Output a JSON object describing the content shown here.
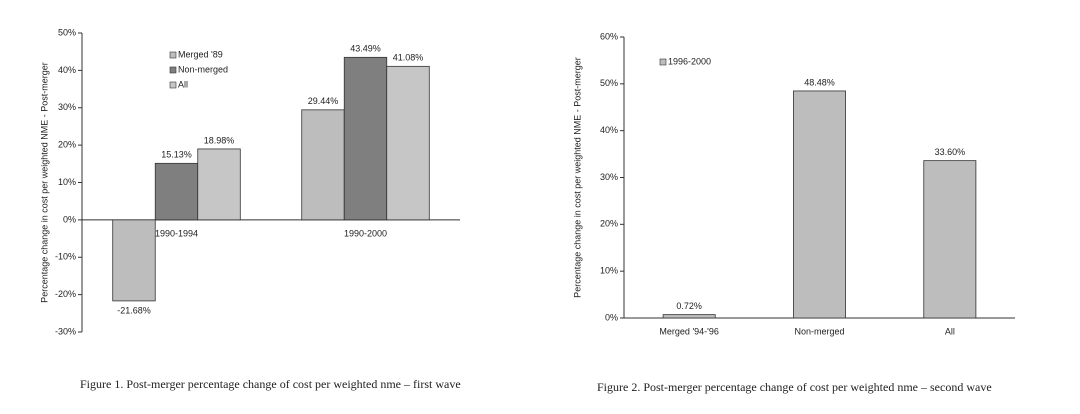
{
  "chart_data": [
    {
      "type": "bar",
      "ylabel": "Percentage change in cost per weighted NME - Post-merger",
      "caption": "Figure 1. Post-merger percentage change of cost per weighted nme – first wave",
      "categories": [
        "1990-1994",
        "1990-2000"
      ],
      "series": [
        {
          "name": "Merged '89",
          "color": "#bdbdbd",
          "values": [
            -21.68,
            29.44
          ],
          "value_labels": [
            "-21.68%",
            "29.44%"
          ]
        },
        {
          "name": "Non-merged",
          "color": "#7f7f7f",
          "values": [
            15.13,
            43.49
          ],
          "value_labels": [
            "15.13%",
            "43.49%"
          ]
        },
        {
          "name": "All",
          "color": "#c6c6c6",
          "values": [
            18.98,
            41.08
          ],
          "value_labels": [
            "18.98%",
            "41.08%"
          ]
        }
      ],
      "ylim": [
        -30,
        50
      ],
      "yticks": [
        {
          "value": -30,
          "label": "-30%"
        },
        {
          "value": -20,
          "label": "-20%"
        },
        {
          "value": -10,
          "label": "-10%"
        },
        {
          "value": 0,
          "label": "0%"
        },
        {
          "value": 10,
          "label": "10%"
        },
        {
          "value": 20,
          "label": "20%"
        },
        {
          "value": 30,
          "label": "30%"
        },
        {
          "value": 40,
          "label": "40%"
        },
        {
          "value": 50,
          "label": "50%"
        }
      ]
    },
    {
      "type": "bar",
      "ylabel": "Percentage change in cost per weighted NME - Post-merger",
      "caption": "Figure 2. Post-merger percentage change of cost per weighted nme – second wave",
      "categories": [
        "Merged '94-'96",
        "Non-merged",
        "All"
      ],
      "series": [
        {
          "name": "1996-2000",
          "color": "#bdbdbd",
          "values": [
            0.72,
            48.48,
            33.6
          ],
          "value_labels": [
            "0.72%",
            "48.48%",
            "33.60%"
          ]
        }
      ],
      "ylim": [
        0,
        60
      ],
      "yticks": [
        {
          "value": 0,
          "label": "0%"
        },
        {
          "value": 10,
          "label": "10%"
        },
        {
          "value": 20,
          "label": "20%"
        },
        {
          "value": 30,
          "label": "30%"
        },
        {
          "value": 40,
          "label": "40%"
        },
        {
          "value": 50,
          "label": "50%"
        },
        {
          "value": 60,
          "label": "60%"
        }
      ]
    }
  ]
}
